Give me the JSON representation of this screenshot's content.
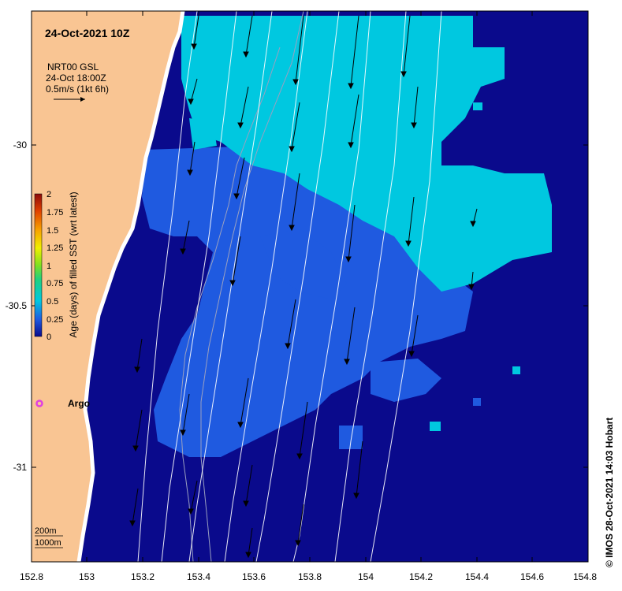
{
  "map": {
    "title": "24-Oct-2021 10Z",
    "vector_info": {
      "line1": "NRT00 GSL",
      "line2": "24-Oct 18:00Z",
      "line3": "0.5m/s (1kt 6h)"
    },
    "credit": "© IMOS 28-Oct-2021 14:03 Hobart",
    "argo_label": "Argo",
    "depth_legend": {
      "line1": "200m",
      "line2": "1000m"
    },
    "x_ticks": [
      "152.8",
      "153",
      "153.2",
      "153.4",
      "153.6",
      "153.8",
      "154",
      "154.2",
      "154.4",
      "154.6",
      "154.8"
    ],
    "y_ticks": [
      "-30",
      "-30.5",
      "-31"
    ],
    "colorbar": {
      "title": "Age (days) of filled SST (wrt latest)",
      "ticks": [
        "2",
        "1.75",
        "1.5",
        "1.25",
        "1",
        "0.75",
        "0.5",
        "0.25",
        "0"
      ]
    },
    "colors": {
      "land": "#f9c593",
      "age_0": "#0a0a8c",
      "age_025": "#1f5ae0",
      "age_05": "#00c8e0",
      "argo": "#e040e0"
    }
  }
}
